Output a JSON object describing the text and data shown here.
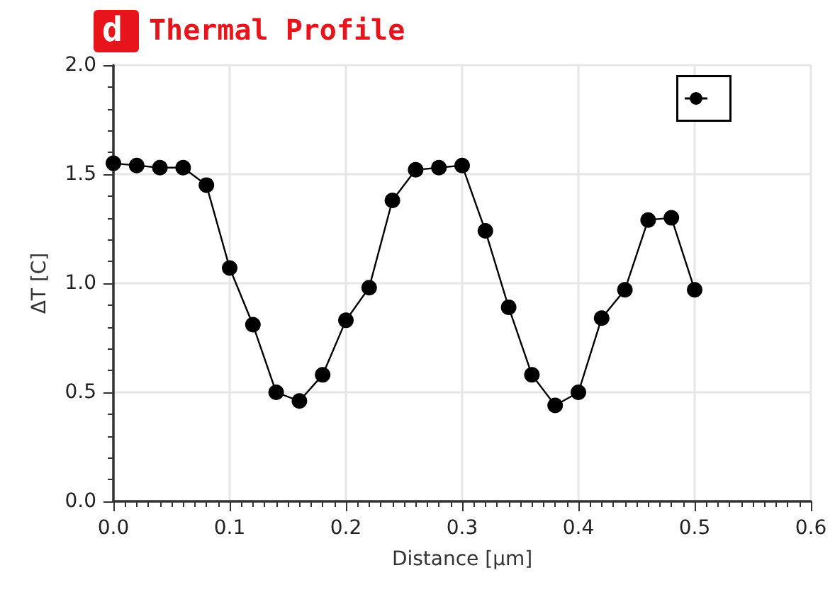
{
  "chart_data": {
    "type": "line",
    "title": "Thermal Profile",
    "annotations": [
      "d"
    ],
    "xlabel": "Distance [µm]",
    "ylabel": "ΔT [C]",
    "x": [
      0,
      0.02,
      0.04,
      0.06,
      0.08,
      0.1,
      0.12,
      0.14,
      0.16,
      0.18,
      0.2,
      0.22,
      0.24,
      0.26,
      0.28,
      0.3,
      0.32,
      0.34,
      0.36,
      0.38,
      0.4,
      0.42,
      0.44,
      0.46,
      0.48,
      0.5
    ],
    "series": [
      {
        "color": "#000000",
        "values": [
          1.55,
          1.54,
          1.53,
          1.53,
          1.45,
          1.07,
          0.81,
          0.5,
          0.46,
          0.58,
          0.83,
          0.98,
          1.38,
          1.52,
          1.53,
          1.54,
          1.24,
          0.89,
          0.58,
          0.44,
          0.5,
          0.84,
          0.97,
          1.29,
          1.3,
          0.97
        ]
      }
    ],
    "xlim": [
      0,
      0.6
    ],
    "xticks": [
      {
        "value": 0,
        "label": "0.0"
      },
      0.1,
      0.2,
      0.3,
      0.4,
      0.5,
      0.6
    ],
    "ylim": [
      0,
      2
    ],
    "yticks": [
      {
        "value": 0,
        "label": "0.0"
      },
      0.5,
      {
        "value": 1,
        "label": "1.0"
      },
      1.5,
      {
        "value": 2,
        "label": "2.0"
      }
    ],
    "grid": true,
    "marker": "circle",
    "line_style": "solid"
  }
}
